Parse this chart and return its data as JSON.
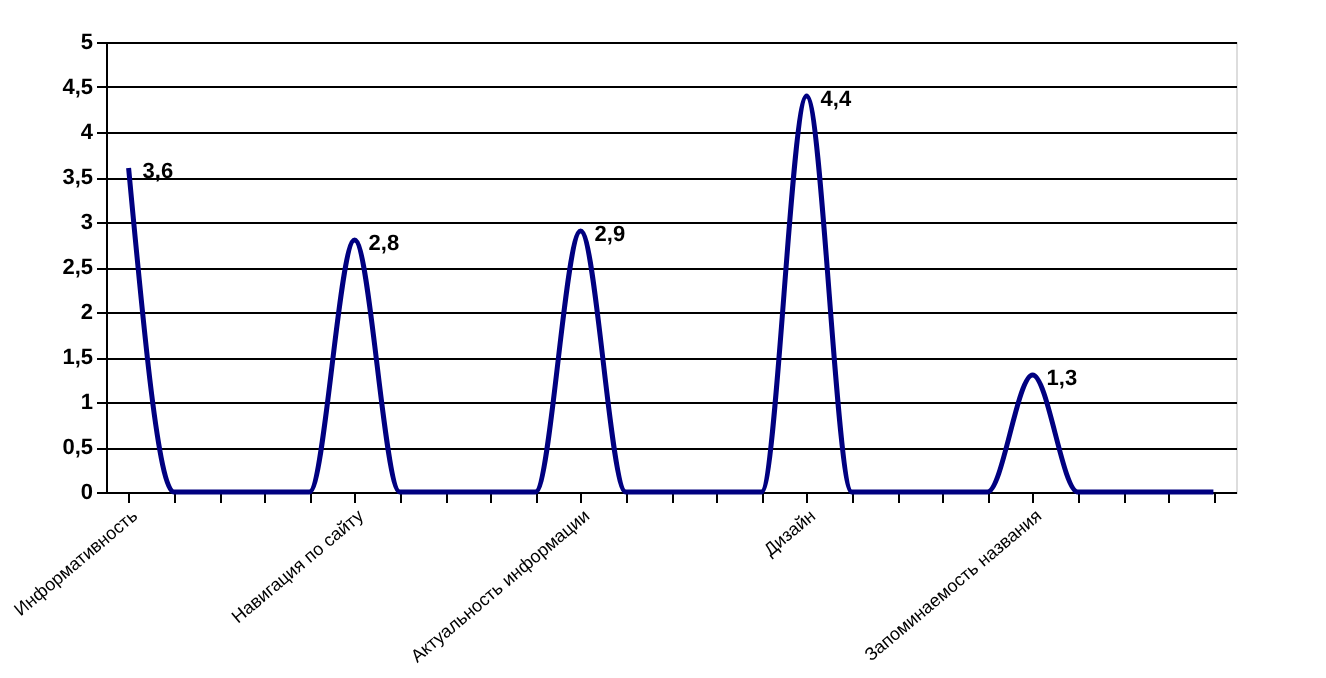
{
  "chart_data": {
    "type": "line",
    "categories": [
      "Информативность",
      null,
      null,
      null,
      null,
      "Навигация по сайту",
      null,
      null,
      null,
      null,
      "Актуальность информации",
      null,
      null,
      null,
      null,
      "Дизайн",
      null,
      null,
      null,
      null,
      "Запоминаемость названия",
      null,
      null,
      null,
      null
    ],
    "series": [
      {
        "color": "#000080",
        "values": [
          3.6,
          0,
          0,
          0,
          0,
          2.8,
          0,
          0,
          0,
          0,
          2.9,
          0,
          0,
          0,
          0,
          4.4,
          0,
          0,
          0,
          0,
          1.3,
          0,
          0,
          0,
          0
        ],
        "value_labels": [
          "3,6",
          null,
          null,
          null,
          null,
          "2,8",
          null,
          null,
          null,
          null,
          "2,9",
          null,
          null,
          null,
          null,
          "4,4",
          null,
          null,
          null,
          null,
          "1,3",
          null,
          null,
          null,
          null
        ]
      }
    ],
    "ylim": [
      0,
      5
    ],
    "yticks": [
      0,
      {
        "value": 0.5,
        "label": "0,5"
      },
      1,
      {
        "value": 1.5,
        "label": "1,5"
      },
      2,
      {
        "value": 2.5,
        "label": "2,5"
      },
      3,
      {
        "value": 3.5,
        "label": "3,5"
      },
      4,
      {
        "value": 4.5,
        "label": "4,5"
      },
      5
    ],
    "grid": "y",
    "marker": "none",
    "line_style": "solid",
    "legend": false
  }
}
